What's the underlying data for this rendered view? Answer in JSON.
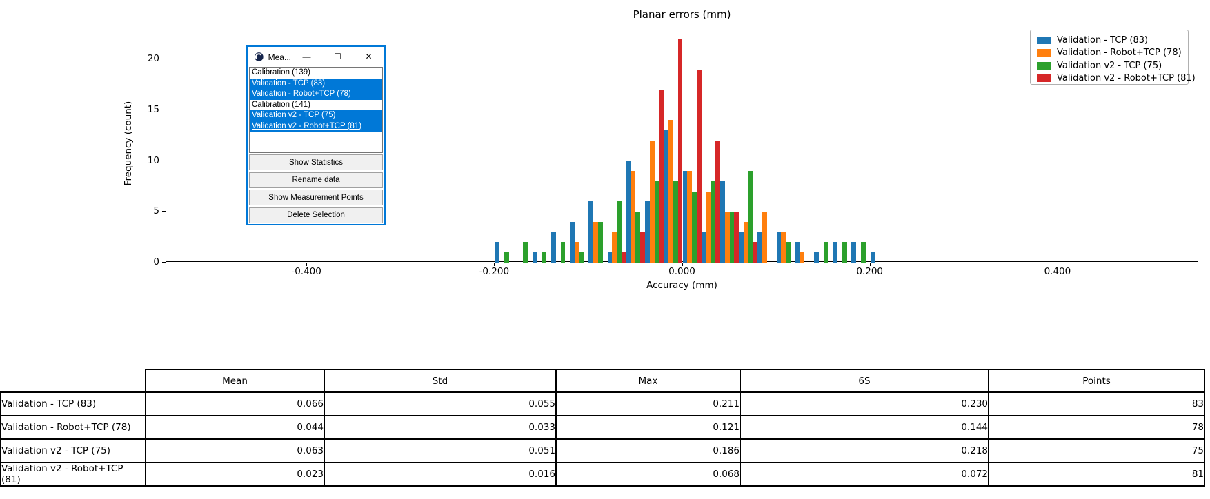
{
  "chart_data": {
    "type": "bar",
    "subtype": "grouped-histogram",
    "title": "Planar errors (mm)",
    "xlabel": "Accuracy (mm)",
    "ylabel": "Frequency (count)",
    "xlim": [
      -0.55,
      0.55
    ],
    "ylim": [
      0,
      23.25
    ],
    "grid": false,
    "legend_position": "upper right",
    "xticks": [
      -0.4,
      -0.2,
      0.0,
      0.2,
      0.4
    ],
    "xtick_labels": [
      "-0.400",
      "-0.200",
      "0.000",
      "0.200",
      "0.400"
    ],
    "yticks": [
      0,
      5,
      10,
      15,
      20
    ],
    "bin_start": -0.2,
    "bin_width": 0.02,
    "bin_edges_note": "21 bins from -0.20 to 0.22, counts per series per bin",
    "series": [
      {
        "name": "Validation - TCP (83)",
        "color": "#1f77b4",
        "values": [
          2,
          0,
          1,
          3,
          4,
          6,
          1,
          10,
          6,
          13,
          9,
          3,
          8,
          3,
          3,
          3,
          2,
          1,
          2,
          2,
          1
        ]
      },
      {
        "name": "Validation - Robot+TCP (78)",
        "color": "#ff7f0e",
        "values": [
          0,
          0,
          0,
          0,
          2,
          4,
          3,
          9,
          12,
          14,
          9,
          7,
          5,
          4,
          5,
          3,
          1,
          0,
          0,
          0,
          0
        ]
      },
      {
        "name": "Validation v2 - TCP (75)",
        "color": "#2ca02c",
        "values": [
          1,
          2,
          1,
          2,
          1,
          4,
          6,
          5,
          8,
          8,
          7,
          8,
          5,
          9,
          0,
          2,
          0,
          2,
          2,
          2,
          0
        ]
      },
      {
        "name": "Validation v2 - Robot+TCP (81)",
        "color": "#d62728",
        "values": [
          0,
          0,
          0,
          0,
          0,
          0,
          1,
          3,
          17,
          22,
          19,
          12,
          5,
          2,
          0,
          0,
          0,
          0,
          0,
          0,
          0
        ]
      }
    ]
  },
  "window": {
    "title": "Mea...",
    "border_color": "#0078d7",
    "selection_color": "#0078d7",
    "controls": {
      "minimize": "—",
      "maximize": "☐",
      "close": "✕"
    },
    "list_items": [
      {
        "label": "Calibration (139)",
        "selected": false,
        "focused": false
      },
      {
        "label": "Validation - TCP (83)",
        "selected": true,
        "focused": false
      },
      {
        "label": "Validation - Robot+TCP (78)",
        "selected": true,
        "focused": false
      },
      {
        "label": "Calibration (141)",
        "selected": false,
        "focused": false
      },
      {
        "label": "Validation v2 - TCP (75)",
        "selected": true,
        "focused": false
      },
      {
        "label": "Validation v2 - Robot+TCP (81)",
        "selected": true,
        "focused": true
      }
    ],
    "buttons": [
      "Show Statistics",
      "Rename data",
      "Show Measurement Points",
      "Delete Selection"
    ]
  },
  "table": {
    "columns": [
      "Mean",
      "Std",
      "Max",
      "6S",
      "Points"
    ],
    "rows": [
      {
        "label": "Validation - TCP (83)",
        "values": [
          "0.066",
          "0.055",
          "0.211",
          "0.230",
          "83"
        ]
      },
      {
        "label": "Validation - Robot+TCP (78)",
        "values": [
          "0.044",
          "0.033",
          "0.121",
          "0.144",
          "78"
        ]
      },
      {
        "label": "Validation v2 - TCP (75)",
        "values": [
          "0.063",
          "0.051",
          "0.186",
          "0.218",
          "75"
        ]
      },
      {
        "label": "Validation v2 - Robot+TCP (81)",
        "values": [
          "0.023",
          "0.016",
          "0.068",
          "0.072",
          "81"
        ]
      }
    ]
  }
}
